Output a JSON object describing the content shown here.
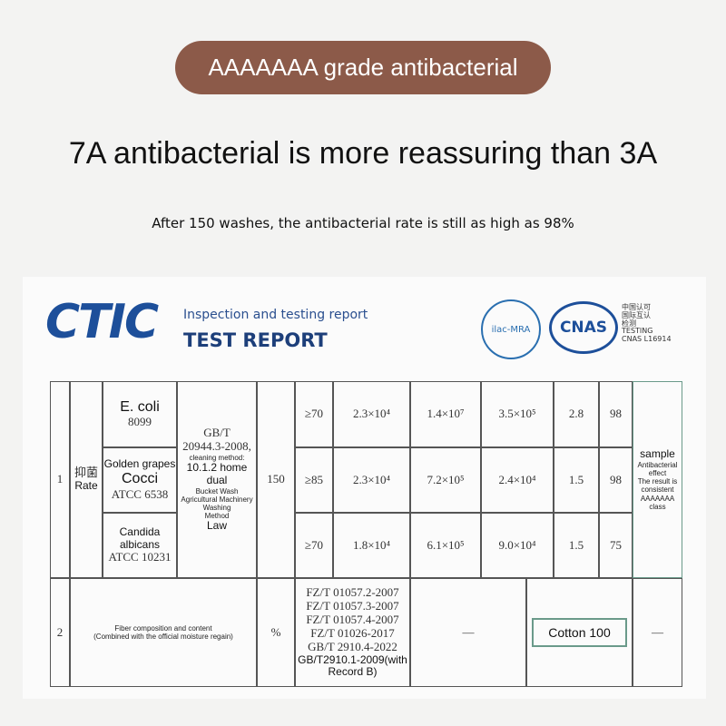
{
  "badge": "AAAAAAA grade antibacterial",
  "headline": "7A antibacterial is more reassuring than 3A",
  "subheadline": "After 150 washes, the antibacterial rate is still as high as 98%",
  "report": {
    "logo": "CTIC",
    "subtitle": "Inspection and testing report",
    "title": "TEST REPORT",
    "marks": [
      "ilac-MRA",
      "CNAS"
    ],
    "accreditation": [
      "中国认可",
      "国际互认",
      "检测",
      "TESTING",
      "CNAS L16914"
    ]
  },
  "table": {
    "row1": {
      "number": "1",
      "item": [
        "抑菌",
        "Rate"
      ],
      "organisms": [
        [
          "E. coli",
          "8099"
        ],
        [
          "Golden grapes",
          "Cocci",
          "ATCC 6538"
        ],
        [
          "Candida albicans",
          "ATCC 10231"
        ]
      ],
      "method": [
        "GB/T",
        "20944.3-2008,",
        "cleaning method:",
        "10.1.2 home dual",
        "Bucket Wash Agricultural Machinery Washing",
        "Method",
        "Law"
      ],
      "washes": "150",
      "results": [
        [
          "≥70",
          "2.3×10⁴",
          "1.4×10⁷",
          "3.5×10⁵",
          "2.8",
          "98"
        ],
        [
          "≥85",
          "2.3×10⁴",
          "7.2×10⁵",
          "2.4×10⁴",
          "1.5",
          "98"
        ],
        [
          "≥70",
          "1.8×10⁴",
          "6.1×10⁵",
          "9.0×10⁴",
          "1.5",
          "75"
        ]
      ],
      "conclusion": [
        "sample",
        "Antibacterial effect",
        "The result is consistent",
        "AAAAAAA",
        "class"
      ]
    },
    "row2": {
      "number": "2",
      "item": [
        "Fiber composition and content",
        "(Combined with the official moisture regain)"
      ],
      "unit": "%",
      "standards": [
        "FZ/T 01057.2-2007",
        "FZ/T 01057.3-2007",
        "FZ/T 01057.4-2007",
        "FZ/T 01026-2017",
        "GB/T 2910.4-2022",
        "GB/T2910.1-2009(with",
        "Record B)"
      ],
      "blank1": "—",
      "result": "Cotton 100",
      "blank2": "—"
    }
  }
}
